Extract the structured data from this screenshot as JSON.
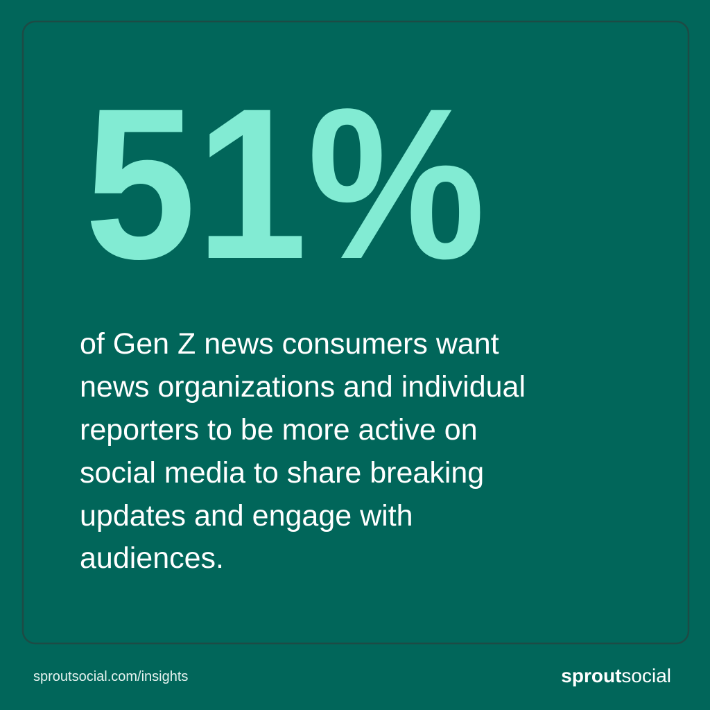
{
  "stat": "51%",
  "body": {
    "lines": [
      "of Gen Z news consumers want",
      "news organizations and individual",
      "reporters to be more active on",
      "social media to share breaking",
      "updates and engage with",
      "audiences."
    ]
  },
  "footer": {
    "url": "sproutsocial.com/insights",
    "logo": {
      "bold": "sprout",
      "regular": "social"
    }
  }
}
